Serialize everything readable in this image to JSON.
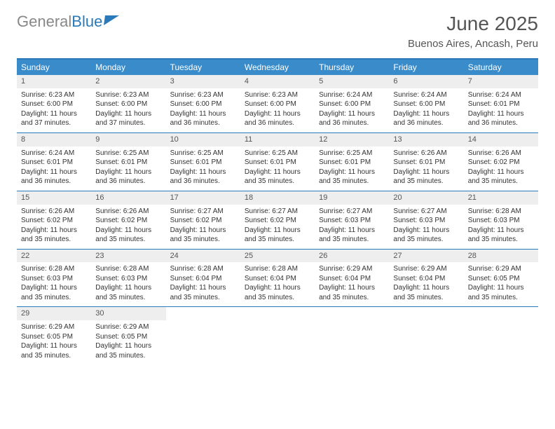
{
  "brand": {
    "part1": "General",
    "part2": "Blue"
  },
  "title": "June 2025",
  "location": "Buenos Aires, Ancash, Peru",
  "colors": {
    "header_bg": "#3a8bc9",
    "border": "#2a7ab9",
    "daynum_bg": "#eeeeee",
    "text": "#333333"
  },
  "day_names": [
    "Sunday",
    "Monday",
    "Tuesday",
    "Wednesday",
    "Thursday",
    "Friday",
    "Saturday"
  ],
  "weeks": [
    [
      {
        "n": "1",
        "sr": "Sunrise: 6:23 AM",
        "ss": "Sunset: 6:00 PM",
        "dl": "Daylight: 11 hours and 37 minutes."
      },
      {
        "n": "2",
        "sr": "Sunrise: 6:23 AM",
        "ss": "Sunset: 6:00 PM",
        "dl": "Daylight: 11 hours and 37 minutes."
      },
      {
        "n": "3",
        "sr": "Sunrise: 6:23 AM",
        "ss": "Sunset: 6:00 PM",
        "dl": "Daylight: 11 hours and 36 minutes."
      },
      {
        "n": "4",
        "sr": "Sunrise: 6:23 AM",
        "ss": "Sunset: 6:00 PM",
        "dl": "Daylight: 11 hours and 36 minutes."
      },
      {
        "n": "5",
        "sr": "Sunrise: 6:24 AM",
        "ss": "Sunset: 6:00 PM",
        "dl": "Daylight: 11 hours and 36 minutes."
      },
      {
        "n": "6",
        "sr": "Sunrise: 6:24 AM",
        "ss": "Sunset: 6:00 PM",
        "dl": "Daylight: 11 hours and 36 minutes."
      },
      {
        "n": "7",
        "sr": "Sunrise: 6:24 AM",
        "ss": "Sunset: 6:01 PM",
        "dl": "Daylight: 11 hours and 36 minutes."
      }
    ],
    [
      {
        "n": "8",
        "sr": "Sunrise: 6:24 AM",
        "ss": "Sunset: 6:01 PM",
        "dl": "Daylight: 11 hours and 36 minutes."
      },
      {
        "n": "9",
        "sr": "Sunrise: 6:25 AM",
        "ss": "Sunset: 6:01 PM",
        "dl": "Daylight: 11 hours and 36 minutes."
      },
      {
        "n": "10",
        "sr": "Sunrise: 6:25 AM",
        "ss": "Sunset: 6:01 PM",
        "dl": "Daylight: 11 hours and 36 minutes."
      },
      {
        "n": "11",
        "sr": "Sunrise: 6:25 AM",
        "ss": "Sunset: 6:01 PM",
        "dl": "Daylight: 11 hours and 35 minutes."
      },
      {
        "n": "12",
        "sr": "Sunrise: 6:25 AM",
        "ss": "Sunset: 6:01 PM",
        "dl": "Daylight: 11 hours and 35 minutes."
      },
      {
        "n": "13",
        "sr": "Sunrise: 6:26 AM",
        "ss": "Sunset: 6:01 PM",
        "dl": "Daylight: 11 hours and 35 minutes."
      },
      {
        "n": "14",
        "sr": "Sunrise: 6:26 AM",
        "ss": "Sunset: 6:02 PM",
        "dl": "Daylight: 11 hours and 35 minutes."
      }
    ],
    [
      {
        "n": "15",
        "sr": "Sunrise: 6:26 AM",
        "ss": "Sunset: 6:02 PM",
        "dl": "Daylight: 11 hours and 35 minutes."
      },
      {
        "n": "16",
        "sr": "Sunrise: 6:26 AM",
        "ss": "Sunset: 6:02 PM",
        "dl": "Daylight: 11 hours and 35 minutes."
      },
      {
        "n": "17",
        "sr": "Sunrise: 6:27 AM",
        "ss": "Sunset: 6:02 PM",
        "dl": "Daylight: 11 hours and 35 minutes."
      },
      {
        "n": "18",
        "sr": "Sunrise: 6:27 AM",
        "ss": "Sunset: 6:02 PM",
        "dl": "Daylight: 11 hours and 35 minutes."
      },
      {
        "n": "19",
        "sr": "Sunrise: 6:27 AM",
        "ss": "Sunset: 6:03 PM",
        "dl": "Daylight: 11 hours and 35 minutes."
      },
      {
        "n": "20",
        "sr": "Sunrise: 6:27 AM",
        "ss": "Sunset: 6:03 PM",
        "dl": "Daylight: 11 hours and 35 minutes."
      },
      {
        "n": "21",
        "sr": "Sunrise: 6:28 AM",
        "ss": "Sunset: 6:03 PM",
        "dl": "Daylight: 11 hours and 35 minutes."
      }
    ],
    [
      {
        "n": "22",
        "sr": "Sunrise: 6:28 AM",
        "ss": "Sunset: 6:03 PM",
        "dl": "Daylight: 11 hours and 35 minutes."
      },
      {
        "n": "23",
        "sr": "Sunrise: 6:28 AM",
        "ss": "Sunset: 6:03 PM",
        "dl": "Daylight: 11 hours and 35 minutes."
      },
      {
        "n": "24",
        "sr": "Sunrise: 6:28 AM",
        "ss": "Sunset: 6:04 PM",
        "dl": "Daylight: 11 hours and 35 minutes."
      },
      {
        "n": "25",
        "sr": "Sunrise: 6:28 AM",
        "ss": "Sunset: 6:04 PM",
        "dl": "Daylight: 11 hours and 35 minutes."
      },
      {
        "n": "26",
        "sr": "Sunrise: 6:29 AM",
        "ss": "Sunset: 6:04 PM",
        "dl": "Daylight: 11 hours and 35 minutes."
      },
      {
        "n": "27",
        "sr": "Sunrise: 6:29 AM",
        "ss": "Sunset: 6:04 PM",
        "dl": "Daylight: 11 hours and 35 minutes."
      },
      {
        "n": "28",
        "sr": "Sunrise: 6:29 AM",
        "ss": "Sunset: 6:05 PM",
        "dl": "Daylight: 11 hours and 35 minutes."
      }
    ],
    [
      {
        "n": "29",
        "sr": "Sunrise: 6:29 AM",
        "ss": "Sunset: 6:05 PM",
        "dl": "Daylight: 11 hours and 35 minutes."
      },
      {
        "n": "30",
        "sr": "Sunrise: 6:29 AM",
        "ss": "Sunset: 6:05 PM",
        "dl": "Daylight: 11 hours and 35 minutes."
      },
      null,
      null,
      null,
      null,
      null
    ]
  ]
}
